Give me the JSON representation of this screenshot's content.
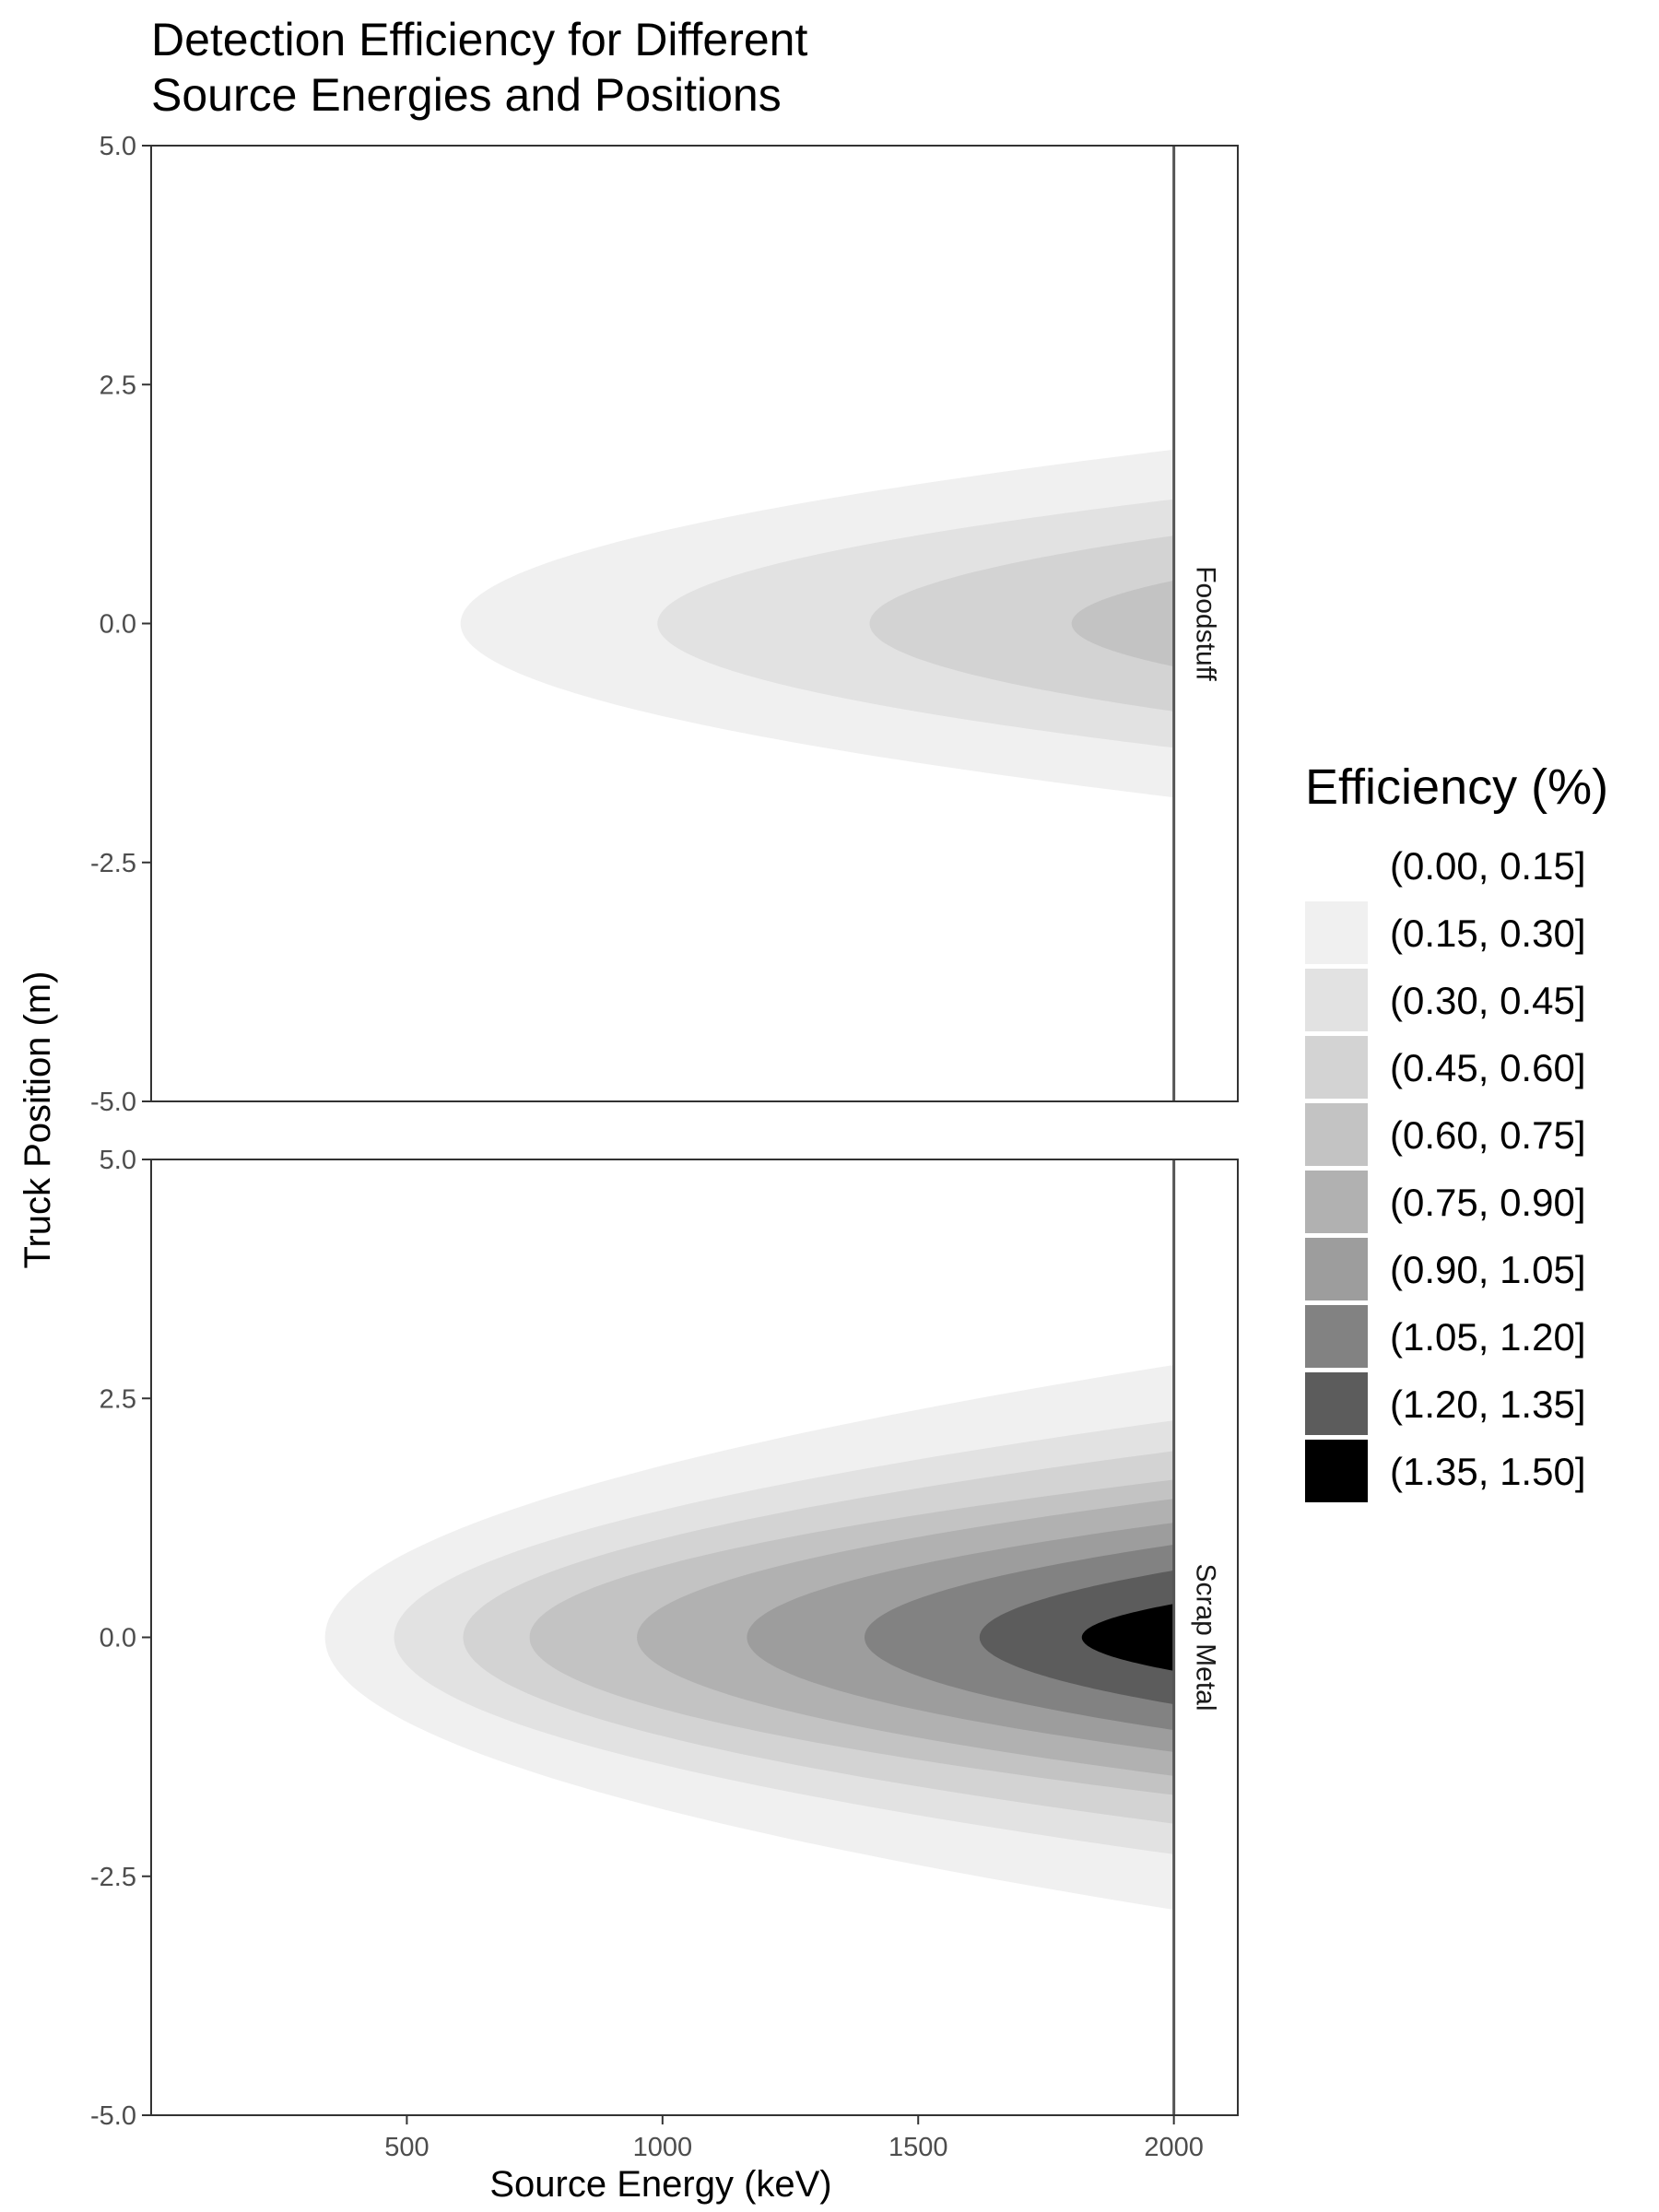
{
  "chart_data": {
    "type": "contour",
    "title_lines": [
      "Detection Efficiency for Different",
      "Source Energies and Positions"
    ],
    "xlabel": "Source Energy (keV)",
    "ylabel": "Truck Position (m)",
    "xlim": [
      0,
      2125
    ],
    "ylim": [
      -5,
      5
    ],
    "x_ticks": [
      500,
      1000,
      1500,
      2000
    ],
    "x_tick_labels": [
      "500",
      "1000",
      "1500",
      "2000"
    ],
    "y_ticks": [
      5,
      2.5,
      0,
      -2.5,
      -5
    ],
    "y_tick_labels": [
      "5.0",
      "2.5",
      "0.0",
      "-2.5",
      "-5.0"
    ],
    "x_max_data": 2000,
    "legend": {
      "title": "Efficiency (%)",
      "position": "right",
      "bins": [
        {
          "label": "(0.00, 0.15]",
          "color": "#ffffff"
        },
        {
          "label": "(0.15, 0.30]",
          "color": "#f0f0f0"
        },
        {
          "label": "(0.30, 0.45]",
          "color": "#e2e2e2"
        },
        {
          "label": "(0.45, 0.60]",
          "color": "#d3d3d3"
        },
        {
          "label": "(0.60, 0.75]",
          "color": "#c3c3c3"
        },
        {
          "label": "(0.75, 0.90]",
          "color": "#b1b1b1"
        },
        {
          "label": "(0.90, 1.05]",
          "color": "#9d9d9d"
        },
        {
          "label": "(1.05, 1.20]",
          "color": "#828282"
        },
        {
          "label": "(1.20, 1.35]",
          "color": "#5c5c5c"
        },
        {
          "label": "(1.35, 1.50]",
          "color": "#000000"
        }
      ]
    },
    "panels": [
      {
        "label": "Foodstuff",
        "contours": [
          {
            "level": 0.15,
            "energy_at_center": 605,
            "halfwidth_at_2000": 1.82
          },
          {
            "level": 0.3,
            "energy_at_center": 990,
            "halfwidth_at_2000": 1.3
          },
          {
            "level": 0.45,
            "energy_at_center": 1405,
            "halfwidth_at_2000": 0.92
          },
          {
            "level": 0.6,
            "energy_at_center": 1800,
            "halfwidth_at_2000": 0.45
          }
        ]
      },
      {
        "label": "Scrap Metal",
        "contours": [
          {
            "level": 0.15,
            "energy_at_center": 340,
            "halfwidth_at_2000": 2.85
          },
          {
            "level": 0.3,
            "energy_at_center": 475,
            "halfwidth_at_2000": 2.27
          },
          {
            "level": 0.45,
            "energy_at_center": 610,
            "halfwidth_at_2000": 1.95
          },
          {
            "level": 0.6,
            "energy_at_center": 740,
            "halfwidth_at_2000": 1.65
          },
          {
            "level": 0.75,
            "energy_at_center": 950,
            "halfwidth_at_2000": 1.45
          },
          {
            "level": 0.9,
            "energy_at_center": 1165,
            "halfwidth_at_2000": 1.2
          },
          {
            "level": 1.05,
            "energy_at_center": 1395,
            "halfwidth_at_2000": 0.97
          },
          {
            "level": 1.2,
            "energy_at_center": 1620,
            "halfwidth_at_2000": 0.7
          },
          {
            "level": 1.35,
            "energy_at_center": 1820,
            "halfwidth_at_2000": 0.35
          }
        ]
      }
    ]
  }
}
